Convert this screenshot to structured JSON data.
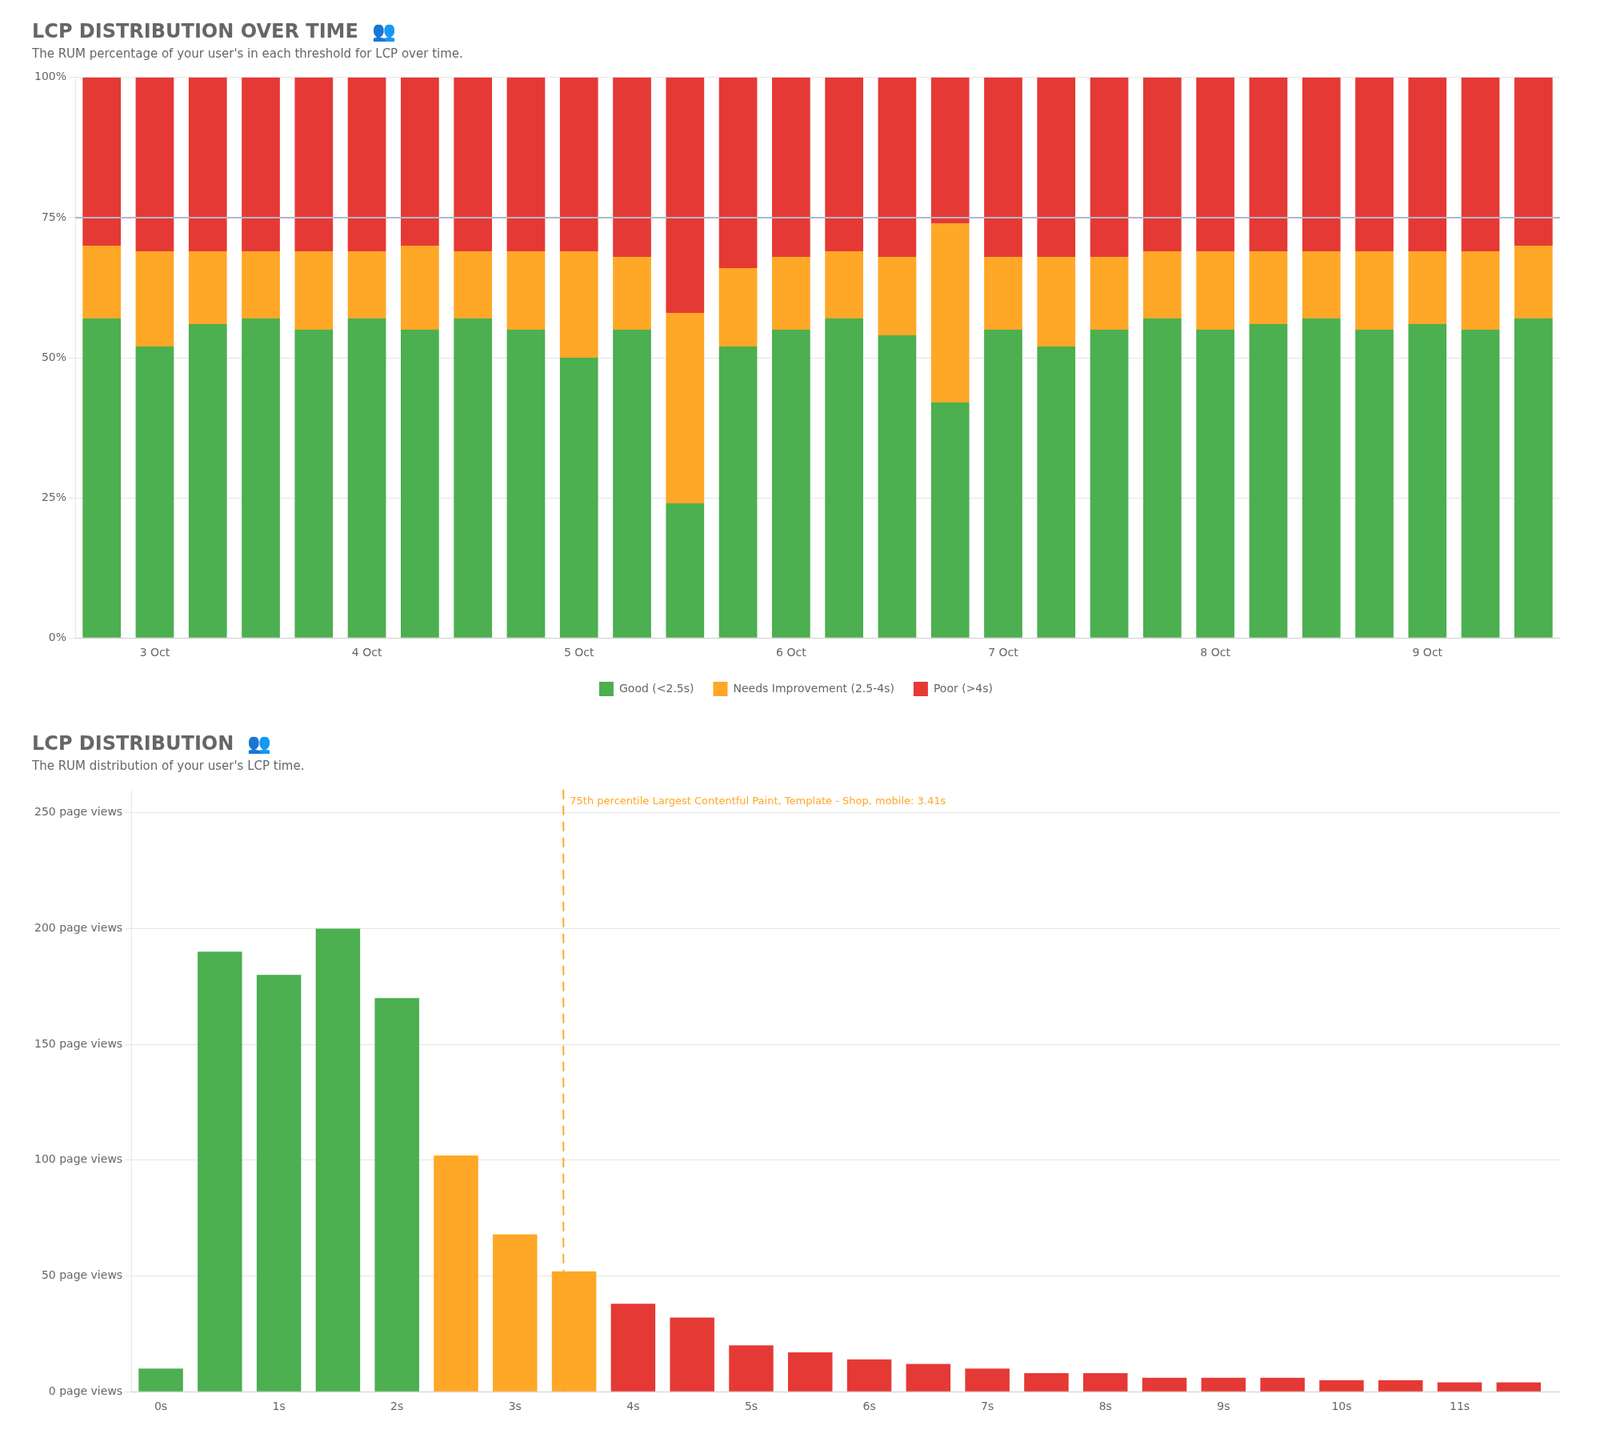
{
  "chart_data": [
    {
      "type": "bar",
      "title": "LCP DISTRIBUTION OVER TIME  👥",
      "subtitle": "The RUM percentage of your user's in each threshold for LCP over time.",
      "stacked": true,
      "categories": [
        null,
        "3 Oct",
        null,
        null,
        null,
        "4 Oct",
        null,
        null,
        null,
        "5 Oct",
        null,
        null,
        null,
        "6 Oct",
        null,
        null,
        null,
        "7 Oct",
        null,
        null,
        null,
        "8 Oct",
        null,
        null,
        null,
        "9 Oct",
        null,
        null
      ],
      "series": [
        {
          "name": "Good (<2.5s)",
          "color": "#4caf50",
          "values": [
            0.57,
            0.52,
            0.56,
            0.57,
            0.55,
            0.57,
            0.55,
            0.57,
            0.55,
            0.5,
            0.55,
            0.24,
            0.52,
            0.55,
            0.57,
            0.54,
            0.42,
            0.55,
            0.52,
            0.55,
            0.57,
            0.55,
            0.56,
            0.57,
            0.55,
            0.56,
            0.55,
            0.57
          ]
        },
        {
          "name": "Needs Improvement (2.5-4s)",
          "color": "#ffa726",
          "values": [
            0.13,
            0.17,
            0.13,
            0.12,
            0.14,
            0.12,
            0.15,
            0.12,
            0.14,
            0.19,
            0.13,
            0.34,
            0.14,
            0.13,
            0.12,
            0.14,
            0.32,
            0.13,
            0.16,
            0.13,
            0.12,
            0.14,
            0.13,
            0.12,
            0.14,
            0.13,
            0.14,
            0.13
          ]
        },
        {
          "name": "Poor (>4s)",
          "color": "#e53935",
          "values": [
            0.3,
            0.31,
            0.31,
            0.31,
            0.31,
            0.31,
            0.3,
            0.31,
            0.31,
            0.31,
            0.32,
            0.42,
            0.34,
            0.32,
            0.31,
            0.32,
            0.26,
            0.32,
            0.32,
            0.32,
            0.31,
            0.31,
            0.31,
            0.31,
            0.31,
            0.31,
            0.31,
            0.3
          ]
        }
      ],
      "ylim": [
        0,
        1
      ],
      "yticks": [
        {
          "value": 0,
          "label": "0%"
        },
        {
          "value": 0.25,
          "label": "25%"
        },
        {
          "value": 0.5,
          "label": "50%"
        },
        {
          "value": 0.75,
          "label": "75%"
        },
        {
          "value": 1,
          "label": "100%"
        }
      ],
      "grid": "y",
      "legend": "bottom",
      "reference_line": {
        "value": 0.75,
        "color": "#b0b8c8"
      }
    },
    {
      "type": "bar",
      "title": "LCP DISTRIBUTION  👥",
      "subtitle": "The RUM distribution of your user's LCP time.",
      "x": [
        0,
        0.5,
        1,
        1.5,
        2,
        2.5,
        3,
        3.5,
        4,
        4.5,
        5,
        5.5,
        6,
        6.5,
        7,
        7.5,
        8,
        8.5,
        9,
        9.5,
        10,
        10.5,
        11,
        11.5
      ],
      "values": [
        10,
        190,
        180,
        200,
        170,
        102,
        68,
        52,
        38,
        32,
        20,
        17,
        14,
        12,
        10,
        8,
        8,
        6,
        6,
        6,
        5,
        5,
        4,
        4
      ],
      "colors": [
        "#4caf50",
        "#4caf50",
        "#4caf50",
        "#4caf50",
        "#4caf50",
        "#ffa726",
        "#ffa726",
        "#ffa726",
        "#e53935",
        "#e53935",
        "#e53935",
        "#e53935",
        "#e53935",
        "#e53935",
        "#e53935",
        "#e53935",
        "#e53935",
        "#e53935",
        "#e53935",
        "#e53935",
        "#e53935",
        "#e53935",
        "#e53935",
        "#e53935"
      ],
      "xlim": [
        -0.25,
        11.85
      ],
      "xticks": [
        {
          "value": 0,
          "label": "0s"
        },
        {
          "value": 1,
          "label": "1s"
        },
        {
          "value": 2,
          "label": "2s"
        },
        {
          "value": 3,
          "label": "3s"
        },
        {
          "value": 4,
          "label": "4s"
        },
        {
          "value": 5,
          "label": "5s"
        },
        {
          "value": 6,
          "label": "6s"
        },
        {
          "value": 7,
          "label": "7s"
        },
        {
          "value": 8,
          "label": "8s"
        },
        {
          "value": 9,
          "label": "9s"
        },
        {
          "value": 10,
          "label": "10s"
        },
        {
          "value": 11,
          "label": "11s"
        }
      ],
      "ylim": [
        0,
        260
      ],
      "yticks": [
        {
          "value": 0,
          "label": "0 page views"
        },
        {
          "value": 50,
          "label": "50 page views"
        },
        {
          "value": 100,
          "label": "100 page views"
        },
        {
          "value": 150,
          "label": "150 page views"
        },
        {
          "value": 200,
          "label": "200 page views"
        },
        {
          "value": 250,
          "label": "250 page views"
        }
      ],
      "grid": "y",
      "annotation": {
        "x": 3.41,
        "label": "75th percentile Largest Contentful Paint, Template - Shop, mobile: 3.41s",
        "color": "#ffa726"
      }
    }
  ]
}
